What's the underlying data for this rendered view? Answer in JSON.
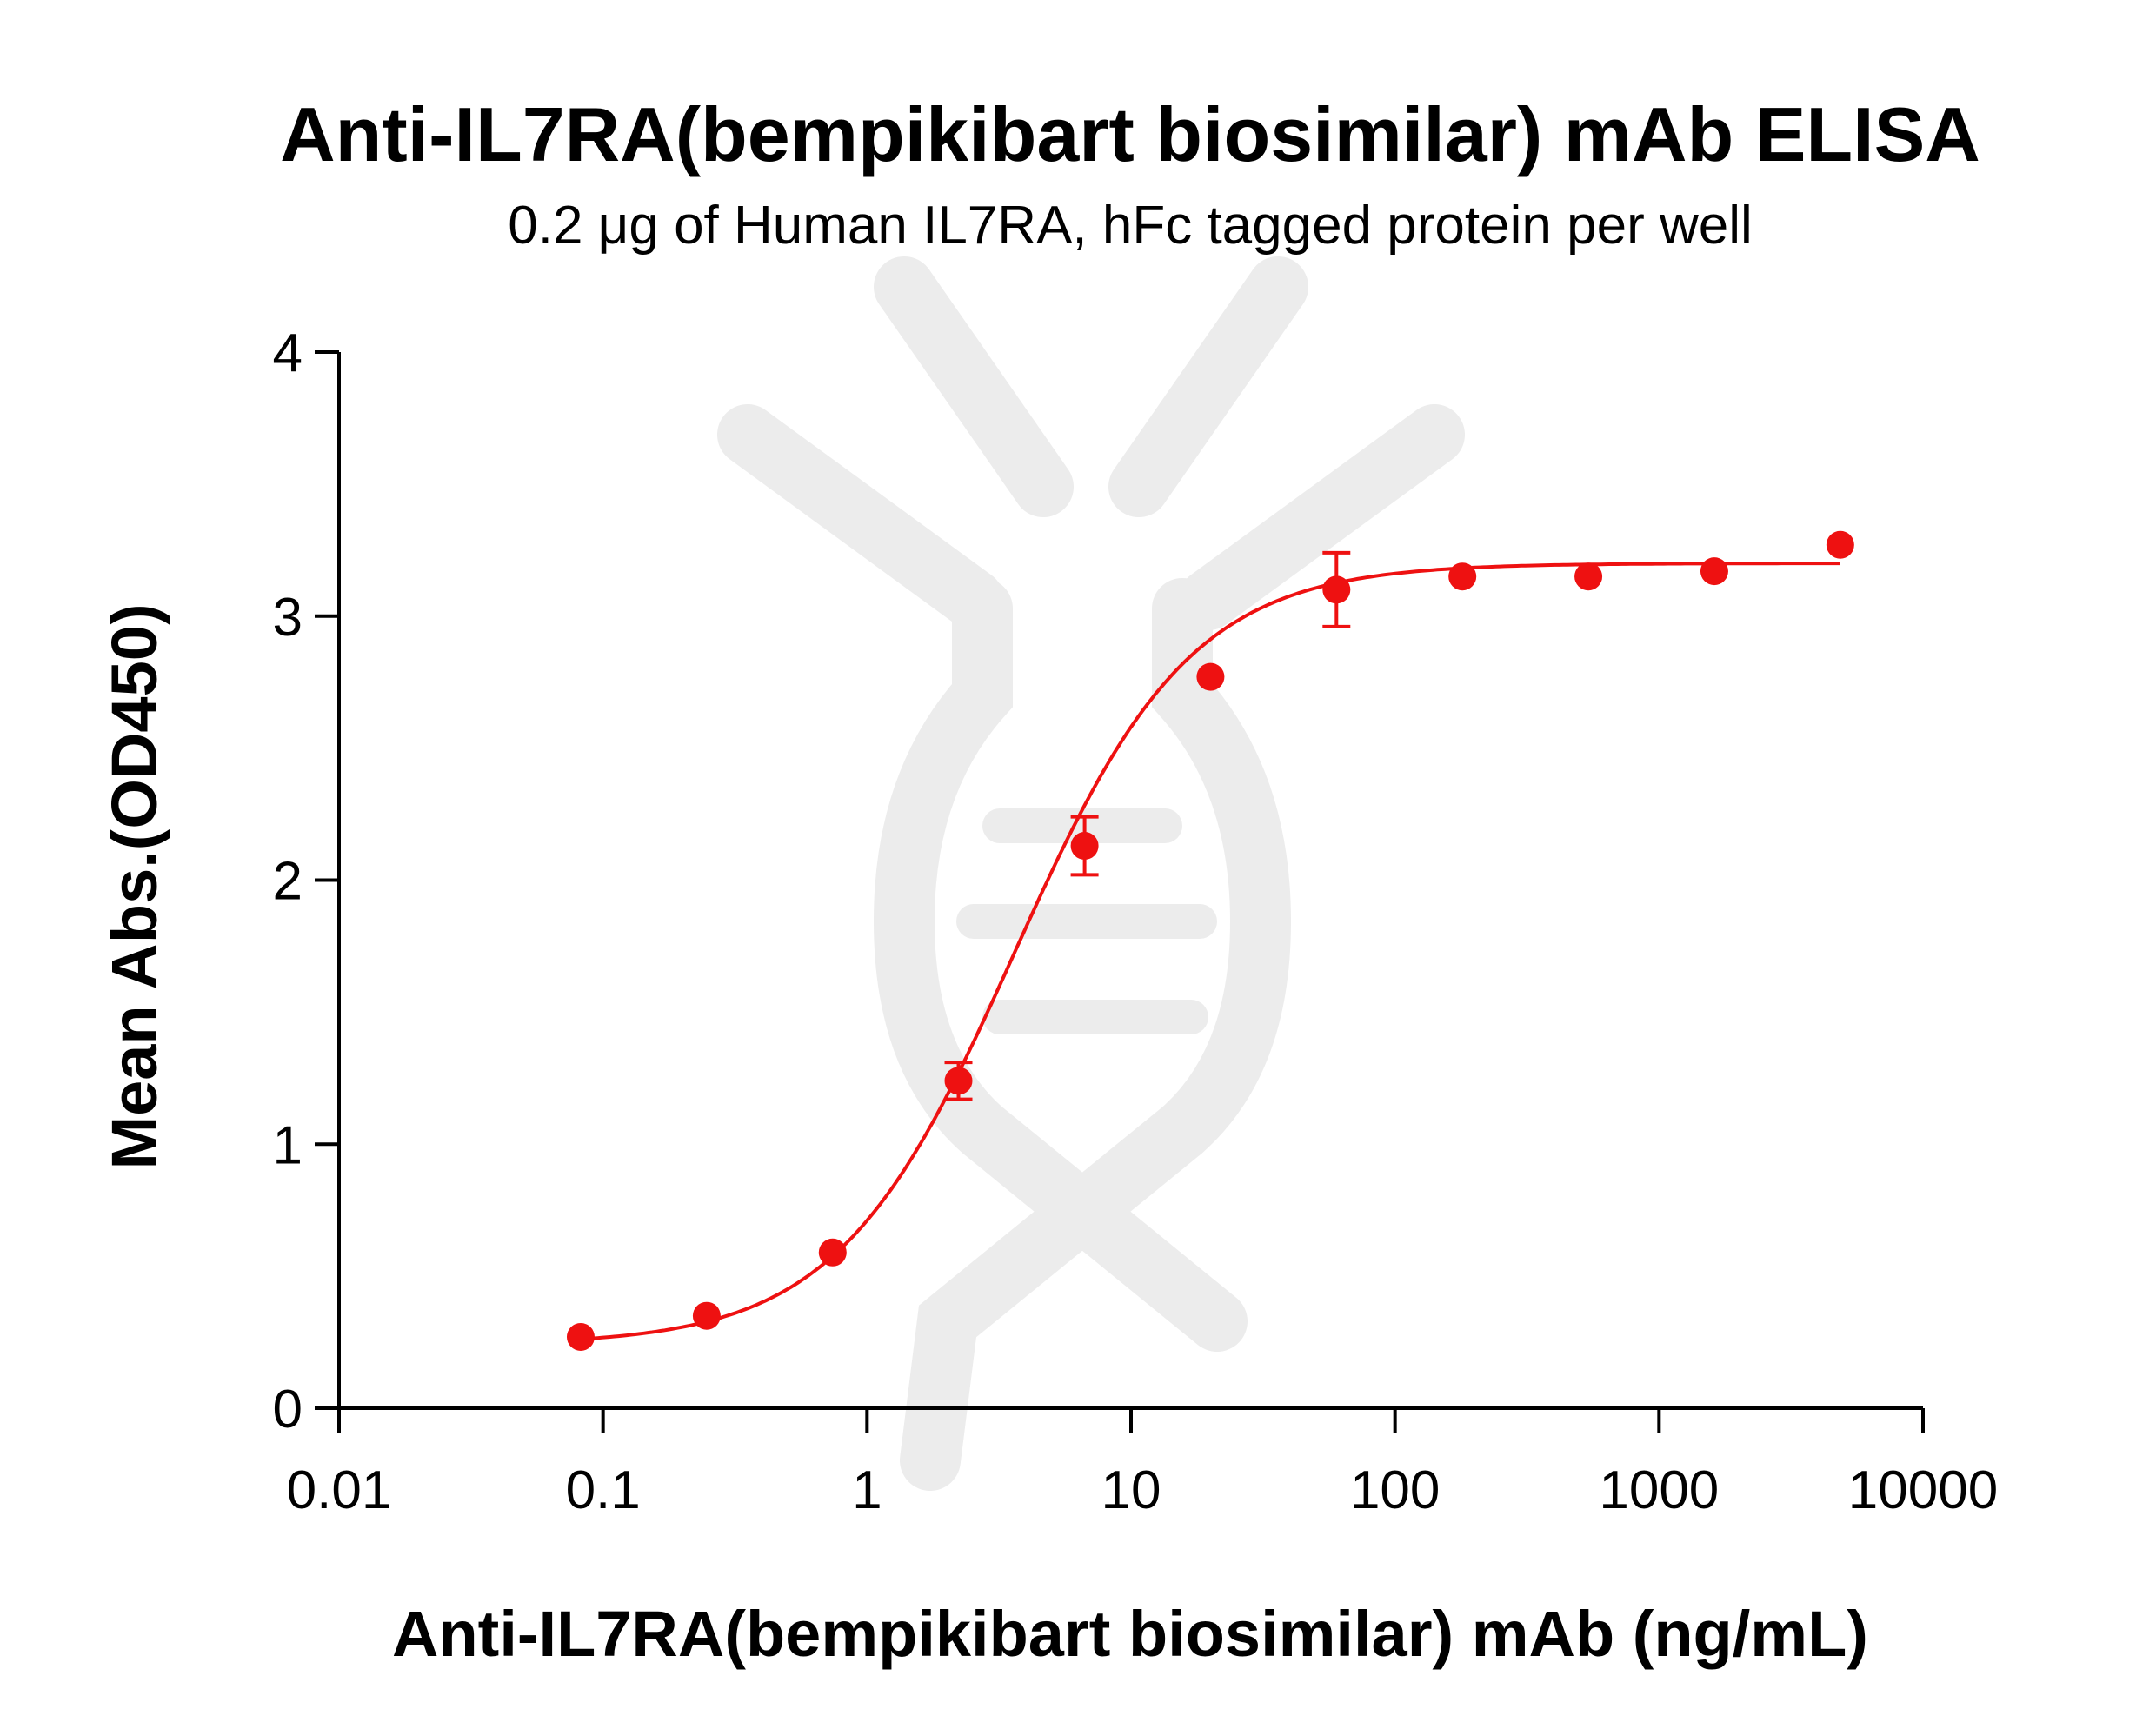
{
  "chart_data": {
    "type": "scatter",
    "title": "Anti-IL7RA(bempikibart biosimilar) mAb ELISA",
    "subtitle": "0.2 μg of Human  IL7RA, hFc tagged protein per well",
    "xlabel": "Anti-IL7RA(bempikibart biosimilar) mAb (ng/mL)",
    "ylabel": "Mean Abs.(OD450)",
    "xscale": "log",
    "xlim": [
      0.01,
      10000
    ],
    "ylim": [
      0,
      4
    ],
    "x_ticks": [
      "0.01",
      "0.1",
      "1",
      "10",
      "100",
      "1000",
      "10000"
    ],
    "y_ticks": [
      "0",
      "1",
      "2",
      "3",
      "4"
    ],
    "grid": false,
    "colors": {
      "series": "#ee1111",
      "axis": "#000000",
      "watermark": "#ececec"
    },
    "series": [
      {
        "x": [
          0.0823,
          0.247,
          0.741,
          2.22,
          6.67,
          20,
          60,
          180,
          540,
          1620,
          4860
        ],
        "y": [
          0.27,
          0.35,
          0.59,
          1.24,
          2.13,
          2.77,
          3.1,
          3.15,
          3.15,
          3.17,
          3.27
        ],
        "error": [
          0,
          0,
          0,
          0.07,
          0.11,
          0,
          0.14,
          0,
          0,
          0,
          0
        ]
      }
    ],
    "fit": {
      "bottom": 0.24,
      "top": 3.2,
      "ec50": 3.6,
      "hill": 1.3
    }
  }
}
